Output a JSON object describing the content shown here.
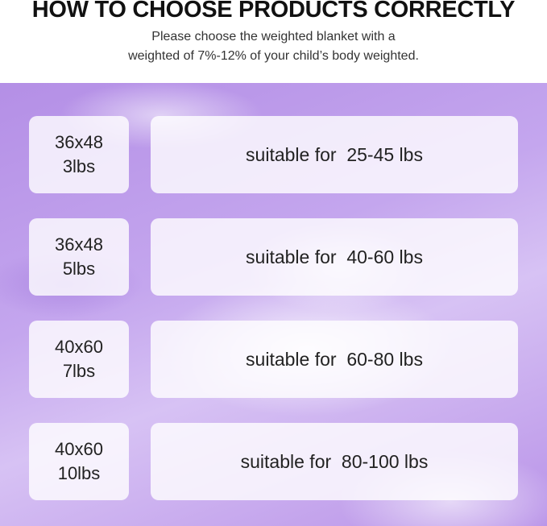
{
  "header": {
    "title": "HOW TO CHOOSE PRODUCTS CORRECTLY",
    "subtitle_line1": "Please choose the weighted blanket with a",
    "subtitle_line2": "weighted of 7%-12% of your child’s body weighted."
  },
  "rows": [
    {
      "size": "36x48",
      "weight": "3lbs",
      "suitable": "suitable for  25-45 lbs"
    },
    {
      "size": "36x48",
      "weight": "5lbs",
      "suitable": "suitable for  40-60 lbs"
    },
    {
      "size": "40x60",
      "weight": "7lbs",
      "suitable": "suitable for  60-80 lbs"
    },
    {
      "size": "40x60",
      "weight": "10lbs",
      "suitable": "suitable for  80-100 lbs"
    }
  ],
  "colors": {
    "background_fabric": "#c4a6ee",
    "card": "#ffffff",
    "text": "#222222"
  }
}
